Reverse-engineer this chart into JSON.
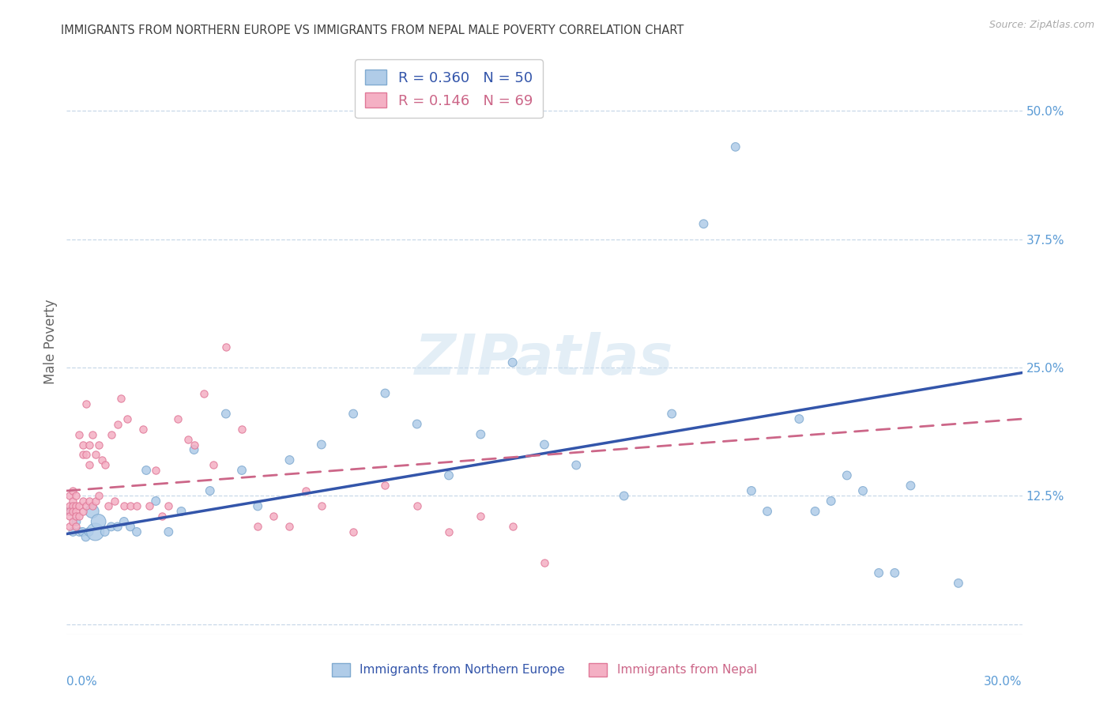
{
  "title": "IMMIGRANTS FROM NORTHERN EUROPE VS IMMIGRANTS FROM NEPAL MALE POVERTY CORRELATION CHART",
  "source": "Source: ZipAtlas.com",
  "ylabel": "Male Poverty",
  "xlim": [
    0.0,
    0.3
  ],
  "ylim": [
    -0.01,
    0.56
  ],
  "watermark": "ZIPatlas",
  "blue_x": [
    0.001,
    0.002,
    0.003,
    0.004,
    0.005,
    0.006,
    0.007,
    0.008,
    0.009,
    0.01,
    0.012,
    0.014,
    0.016,
    0.018,
    0.02,
    0.022,
    0.025,
    0.028,
    0.032,
    0.036,
    0.04,
    0.045,
    0.05,
    0.055,
    0.06,
    0.07,
    0.08,
    0.09,
    0.1,
    0.11,
    0.12,
    0.13,
    0.14,
    0.15,
    0.16,
    0.175,
    0.19,
    0.2,
    0.21,
    0.215,
    0.22,
    0.23,
    0.235,
    0.24,
    0.245,
    0.25,
    0.255,
    0.26,
    0.265,
    0.28
  ],
  "blue_y": [
    0.11,
    0.09,
    0.1,
    0.09,
    0.09,
    0.085,
    0.09,
    0.11,
    0.09,
    0.1,
    0.09,
    0.095,
    0.095,
    0.1,
    0.095,
    0.09,
    0.15,
    0.12,
    0.09,
    0.11,
    0.17,
    0.13,
    0.205,
    0.15,
    0.115,
    0.16,
    0.175,
    0.205,
    0.225,
    0.195,
    0.145,
    0.185,
    0.255,
    0.175,
    0.155,
    0.125,
    0.205,
    0.39,
    0.465,
    0.13,
    0.11,
    0.2,
    0.11,
    0.12,
    0.145,
    0.13,
    0.05,
    0.05,
    0.135,
    0.04
  ],
  "blue_size": [
    60,
    60,
    60,
    60,
    60,
    60,
    60,
    150,
    250,
    180,
    60,
    60,
    60,
    60,
    60,
    60,
    60,
    60,
    60,
    60,
    60,
    60,
    60,
    60,
    60,
    60,
    60,
    60,
    60,
    60,
    60,
    60,
    60,
    60,
    60,
    60,
    60,
    60,
    60,
    60,
    60,
    60,
    60,
    60,
    60,
    60,
    60,
    60,
    60,
    60
  ],
  "pink_x": [
    0.001,
    0.001,
    0.001,
    0.001,
    0.001,
    0.002,
    0.002,
    0.002,
    0.002,
    0.002,
    0.003,
    0.003,
    0.003,
    0.003,
    0.003,
    0.004,
    0.004,
    0.004,
    0.005,
    0.005,
    0.005,
    0.005,
    0.006,
    0.006,
    0.006,
    0.007,
    0.007,
    0.007,
    0.008,
    0.008,
    0.009,
    0.009,
    0.01,
    0.01,
    0.011,
    0.012,
    0.013,
    0.014,
    0.015,
    0.016,
    0.017,
    0.018,
    0.019,
    0.02,
    0.022,
    0.024,
    0.026,
    0.028,
    0.03,
    0.032,
    0.035,
    0.038,
    0.04,
    0.043,
    0.046,
    0.05,
    0.055,
    0.06,
    0.065,
    0.07,
    0.075,
    0.08,
    0.09,
    0.1,
    0.11,
    0.12,
    0.13,
    0.14,
    0.15
  ],
  "pink_y": [
    0.125,
    0.115,
    0.11,
    0.105,
    0.095,
    0.13,
    0.12,
    0.115,
    0.11,
    0.1,
    0.125,
    0.115,
    0.11,
    0.105,
    0.095,
    0.185,
    0.115,
    0.105,
    0.175,
    0.165,
    0.12,
    0.11,
    0.215,
    0.165,
    0.115,
    0.175,
    0.155,
    0.12,
    0.185,
    0.115,
    0.165,
    0.12,
    0.175,
    0.125,
    0.16,
    0.155,
    0.115,
    0.185,
    0.12,
    0.195,
    0.22,
    0.115,
    0.2,
    0.115,
    0.115,
    0.19,
    0.115,
    0.15,
    0.105,
    0.115,
    0.2,
    0.18,
    0.175,
    0.225,
    0.155,
    0.27,
    0.19,
    0.095,
    0.105,
    0.095,
    0.13,
    0.115,
    0.09,
    0.135,
    0.115,
    0.09,
    0.105,
    0.095,
    0.06
  ],
  "blue_trend_x": [
    0.0,
    0.3
  ],
  "blue_trend_y": [
    0.088,
    0.245
  ],
  "pink_trend_x": [
    0.0,
    0.3
  ],
  "pink_trend_y": [
    0.13,
    0.2
  ],
  "ytick_positions": [
    0.0,
    0.125,
    0.25,
    0.375,
    0.5
  ],
  "ytick_labels": [
    "",
    "12.5%",
    "25.0%",
    "37.5%",
    "50.0%"
  ],
  "blue_color": "#b0cce8",
  "blue_edge": "#80aad0",
  "blue_line_color": "#3355aa",
  "pink_color": "#f4b0c4",
  "pink_edge": "#e07898",
  "pink_line_color": "#cc6688",
  "grid_color": "#c8d8e8",
  "axis_label_color": "#5b9bd5",
  "title_color": "#404040",
  "legend1_line1": "R = 0.360   N = 50",
  "legend1_line2": "R = 0.146   N = 69",
  "legend2_label1": "Immigrants from Northern Europe",
  "legend2_label2": "Immigrants from Nepal"
}
